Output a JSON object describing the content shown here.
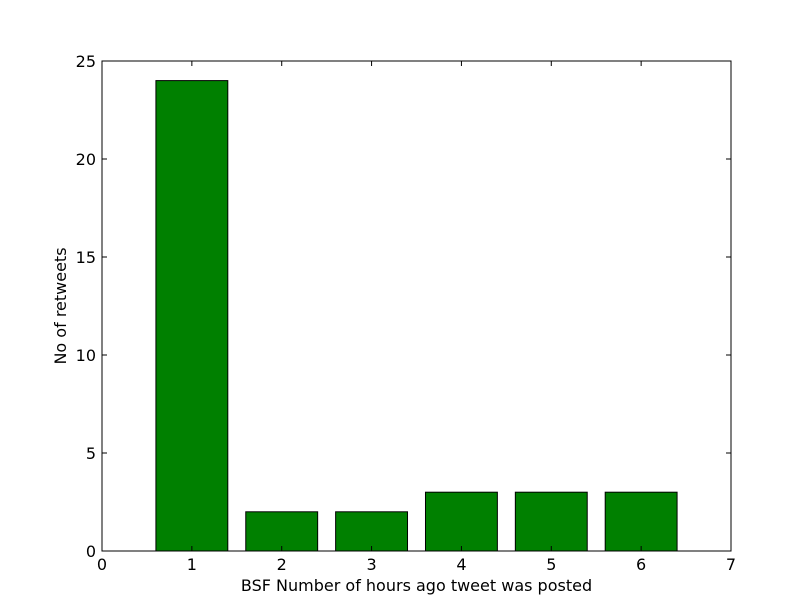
{
  "chart_data": {
    "type": "bar",
    "title": "",
    "xlabel": "BSF Number of hours ago tweet was posted",
    "ylabel": "No of retweets",
    "xlim": [
      0,
      7
    ],
    "ylim": [
      0,
      25
    ],
    "xticks": [
      0,
      1,
      2,
      3,
      4,
      5,
      6,
      7
    ],
    "yticks": [
      0,
      5,
      10,
      15,
      20,
      25
    ],
    "x": [
      1,
      2,
      3,
      4,
      5,
      6
    ],
    "values": [
      24,
      2,
      2,
      3,
      3,
      3
    ],
    "bar_width": 0.8,
    "bar_color": "#008000",
    "edge_color": "#000000",
    "grid": false,
    "legend": false
  }
}
